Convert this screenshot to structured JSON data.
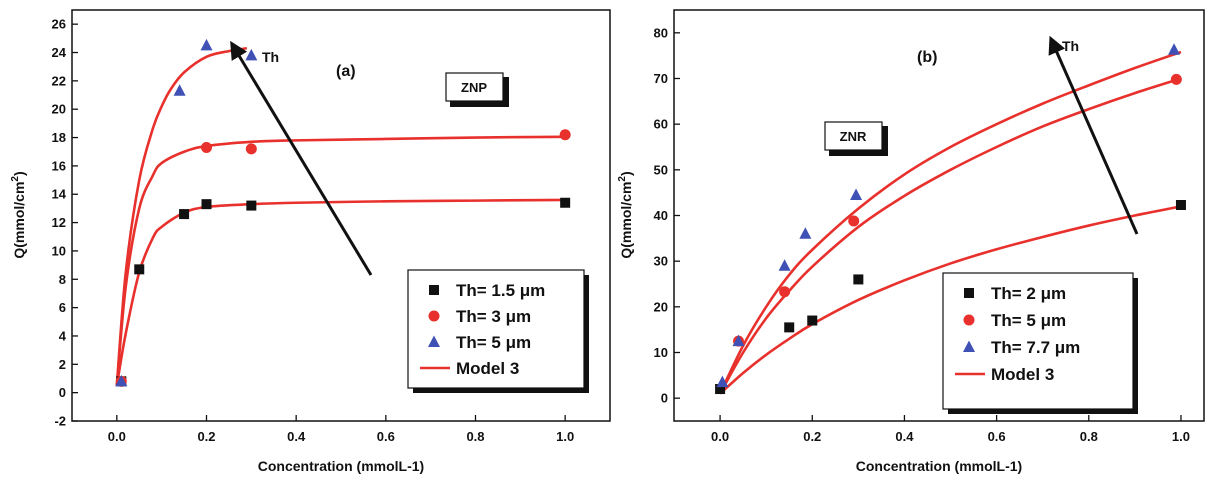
{
  "chart_data": [
    {
      "type": "scatter",
      "panel_label": "(a)",
      "box_label": "ZNP",
      "arrow_label": "Th",
      "xlabel": "Concentration  (mmolL-1)",
      "ylabel": "Q(mmol/cm²)",
      "xlim": [
        -0.1,
        1.1
      ],
      "ylim": [
        -2,
        27
      ],
      "x_ticks": [
        0.0,
        0.2,
        0.4,
        0.6,
        0.8,
        1.0
      ],
      "x_tick_labels": [
        "0.0",
        "0.2",
        "0.4",
        "0.6",
        "0.8",
        "1.0"
      ],
      "y_ticks": [
        -2,
        0,
        2,
        4,
        6,
        8,
        10,
        12,
        14,
        16,
        18,
        20,
        22,
        24,
        26
      ],
      "y_tick_labels": [
        "-2",
        "0",
        "2",
        "4",
        "6",
        "8",
        "10",
        "12",
        "14",
        "16",
        "18",
        "20",
        "22",
        "24",
        "26"
      ],
      "legend_position": "bottom-right",
      "series": [
        {
          "name": "Th= 1.5 μm",
          "marker": "square",
          "color": "#111111",
          "x": [
            0.01,
            0.05,
            0.15,
            0.2,
            0.3,
            1.0
          ],
          "y": [
            0.8,
            8.7,
            12.6,
            13.3,
            13.2,
            13.4
          ]
        },
        {
          "name": "Th= 3 μm",
          "marker": "circle",
          "color": "#e8302c",
          "x": [
            0.01,
            0.2,
            0.3,
            1.0
          ],
          "y": [
            0.8,
            17.3,
            17.2,
            18.2
          ]
        },
        {
          "name": "Th= 5 μm",
          "marker": "triangle",
          "color": "#3f51b5",
          "x": [
            0.01,
            0.14,
            0.2,
            0.3
          ],
          "y": [
            0.8,
            21.3,
            24.5,
            23.8
          ]
        }
      ],
      "model": {
        "name": "Model 3",
        "color": "#e8302c",
        "curves": [
          {
            "x": [
              0.0,
              0.02,
              0.05,
              0.08,
              0.1,
              0.15,
              0.2,
              0.3,
              0.4,
              0.6,
              0.8,
              1.0
            ],
            "y": [
              0.5,
              4.2,
              8.5,
              10.9,
              11.7,
              12.7,
              13.1,
              13.3,
              13.4,
              13.5,
              13.55,
              13.6
            ]
          },
          {
            "x": [
              0.0,
              0.02,
              0.05,
              0.08,
              0.1,
              0.15,
              0.2,
              0.3,
              0.4,
              0.6,
              0.8,
              1.0
            ],
            "y": [
              0.5,
              7.5,
              13.0,
              15.3,
              16.2,
              17.0,
              17.4,
              17.7,
              17.8,
              17.9,
              18.0,
              18.05
            ]
          },
          {
            "x": [
              0.0,
              0.02,
              0.05,
              0.08,
              0.1,
              0.12,
              0.15,
              0.2,
              0.25,
              0.29
            ],
            "y": [
              0.5,
              8.5,
              15.0,
              18.6,
              20.2,
              21.4,
              22.6,
              23.7,
              24.1,
              24.3
            ]
          }
        ]
      }
    },
    {
      "type": "scatter",
      "panel_label": "(b)",
      "box_label": "ZNR",
      "arrow_label": "Th",
      "xlabel": "Concentration  (mmolL-1)",
      "ylabel": "Q(mmol/cm²)",
      "xlim": [
        -0.1,
        1.05
      ],
      "ylim": [
        -5,
        85
      ],
      "x_ticks": [
        0.0,
        0.2,
        0.4,
        0.6,
        0.8,
        1.0
      ],
      "x_tick_labels": [
        "0.0",
        "0.2",
        "0.4",
        "0.6",
        "0.8",
        "1.0"
      ],
      "y_ticks": [
        0,
        10,
        20,
        30,
        40,
        50,
        60,
        70,
        80
      ],
      "y_tick_labels": [
        "0",
        "10",
        "20",
        "30",
        "40",
        "50",
        "60",
        "70",
        "80"
      ],
      "legend_position": "bottom-right",
      "series": [
        {
          "name": "Th= 2 μm",
          "marker": "square",
          "color": "#111111",
          "x": [
            0.0,
            0.15,
            0.2,
            0.3,
            1.0
          ],
          "y": [
            2.0,
            15.5,
            17.0,
            26.0,
            42.3
          ]
        },
        {
          "name": "Th= 5 μm",
          "marker": "circle",
          "color": "#e8302c",
          "x": [
            0.04,
            0.14,
            0.29,
            0.99
          ],
          "y": [
            12.5,
            23.3,
            38.8,
            69.8
          ]
        },
        {
          "name": "Th= 7.7 μm",
          "marker": "triangle",
          "color": "#3f51b5",
          "x": [
            0.005,
            0.04,
            0.14,
            0.185,
            0.295,
            0.985
          ],
          "y": [
            3.5,
            12.5,
            29.0,
            36.0,
            44.5,
            76.3
          ]
        }
      ],
      "model": {
        "name": "Model 3",
        "color": "#e8302c",
        "curves": [
          {
            "x": [
              0.0,
              0.05,
              0.1,
              0.15,
              0.2,
              0.3,
              0.4,
              0.5,
              0.6,
              0.7,
              0.8,
              0.9,
              1.0
            ],
            "y": [
              1.0,
              5.5,
              9.5,
              13.0,
              16.2,
              21.5,
              25.8,
              29.5,
              32.6,
              35.3,
              37.8,
              40.0,
              42.0
            ]
          },
          {
            "x": [
              0.0,
              0.05,
              0.1,
              0.15,
              0.2,
              0.3,
              0.4,
              0.5,
              0.6,
              0.7,
              0.8,
              0.9,
              1.0
            ],
            "y": [
              1.0,
              10.0,
              17.5,
              23.5,
              28.8,
              37.5,
              44.3,
              50.0,
              55.0,
              59.5,
              63.3,
              66.8,
              70.0
            ]
          },
          {
            "x": [
              0.0,
              0.05,
              0.1,
              0.15,
              0.2,
              0.3,
              0.4,
              0.5,
              0.6,
              0.7,
              0.8,
              0.9,
              1.0
            ],
            "y": [
              1.0,
              11.5,
              20.0,
              27.0,
              32.5,
              41.5,
              49.0,
              55.0,
              60.0,
              64.5,
              68.5,
              72.3,
              75.8
            ]
          }
        ]
      }
    }
  ]
}
